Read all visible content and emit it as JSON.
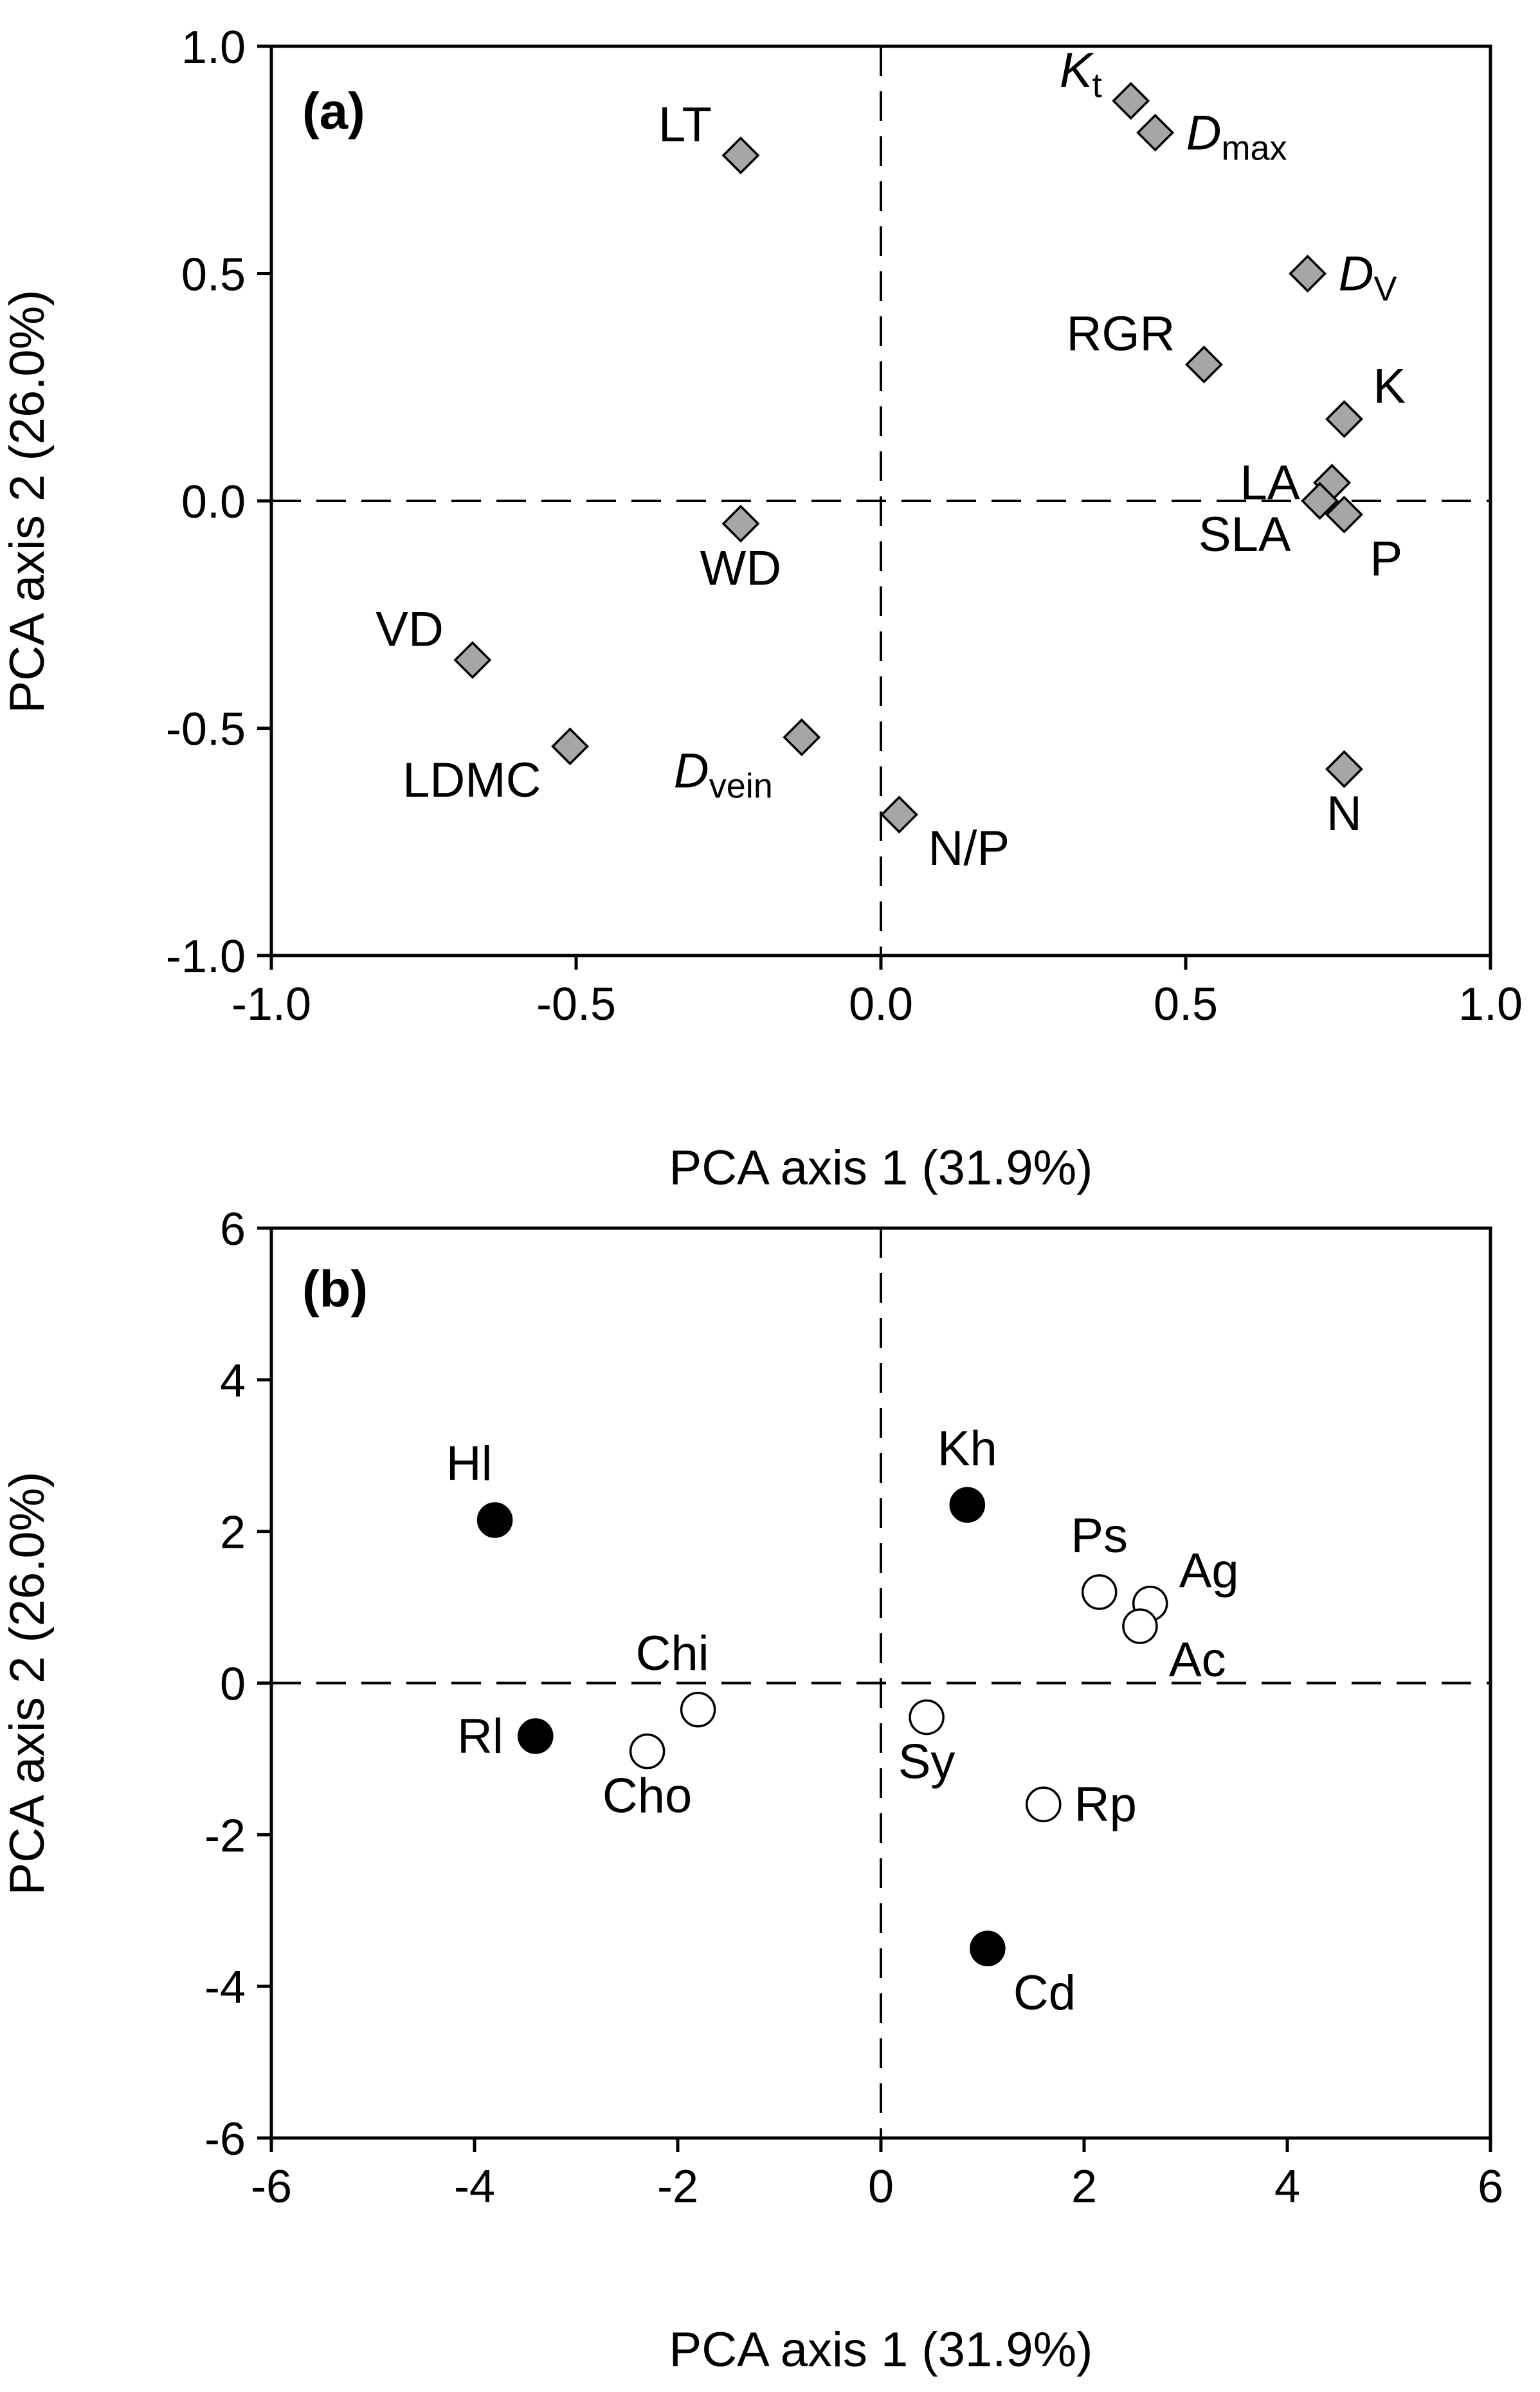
{
  "chart_data": [
    {
      "type": "scatter",
      "panel": "(a)",
      "marker": "diamond",
      "xlabel": "PCA axis 1 (31.9%)",
      "ylabel": "PCA axis 2 (26.0%)",
      "xlim": [
        -1.0,
        1.0
      ],
      "ylim": [
        -1.0,
        1.0
      ],
      "xticks": [
        -1.0,
        -0.5,
        0.0,
        0.5,
        1.0
      ],
      "yticks": [
        -1.0,
        -0.5,
        0.0,
        0.5,
        1.0
      ],
      "xtick_labels": [
        "-1.0",
        "-0.5",
        "0.0",
        "0.5",
        "1.0"
      ],
      "ytick_labels": [
        "-1.0",
        "-0.5",
        "0.0",
        "0.5",
        "1.0"
      ],
      "grid": false,
      "reference_lines": "dashed at x=0 and y=0",
      "points": [
        {
          "label": "Kt",
          "main": "K",
          "sub": "t",
          "italic": true,
          "x": 0.41,
          "y": 0.88,
          "label_pos": "upper-left"
        },
        {
          "label": "Dmax",
          "main": "D",
          "sub": "max",
          "italic": true,
          "x": 0.45,
          "y": 0.81,
          "label_pos": "right"
        },
        {
          "label": "LT",
          "main": "LT",
          "x": -0.23,
          "y": 0.76,
          "label_pos": "upper-left"
        },
        {
          "label": "DV",
          "main": "D",
          "sub": "V",
          "italic": true,
          "x": 0.7,
          "y": 0.5,
          "label_pos": "right"
        },
        {
          "label": "RGR",
          "main": "RGR",
          "x": 0.53,
          "y": 0.3,
          "label_pos": "upper-left"
        },
        {
          "label": "K",
          "main": "K",
          "x": 0.76,
          "y": 0.18,
          "label_pos": "upper-right"
        },
        {
          "label": "LA",
          "main": "LA",
          "x": 0.74,
          "y": 0.04,
          "label_pos": "left"
        },
        {
          "label": "SLA",
          "main": "SLA",
          "x": 0.72,
          "y": 0.0,
          "label_pos": "lower-left"
        },
        {
          "label": "P",
          "main": "P",
          "x": 0.76,
          "y": -0.03,
          "label_pos": "below-right"
        },
        {
          "label": "WD",
          "main": "WD",
          "x": -0.23,
          "y": -0.05,
          "label_pos": "below"
        },
        {
          "label": "VD",
          "main": "VD",
          "x": -0.67,
          "y": -0.35,
          "label_pos": "upper-left"
        },
        {
          "label": "LDMC",
          "main": "LDMC",
          "x": -0.51,
          "y": -0.54,
          "label_pos": "lower-left"
        },
        {
          "label": "Dvein",
          "main": "D",
          "sub": "vein",
          "italic": true,
          "x": -0.13,
          "y": -0.52,
          "label_pos": "lower-left"
        },
        {
          "label": "N/P",
          "main": "N/P",
          "x": 0.03,
          "y": -0.69,
          "label_pos": "lower-right"
        },
        {
          "label": "N",
          "main": "N",
          "x": 0.76,
          "y": -0.59,
          "label_pos": "below"
        }
      ]
    },
    {
      "type": "scatter",
      "panel": "(b)",
      "marker": "circle",
      "xlabel": "PCA axis 1 (31.9%)",
      "ylabel": "PCA axis 2 (26.0%)",
      "xlim": [
        -6,
        6
      ],
      "ylim": [
        -6,
        6
      ],
      "xticks": [
        -6,
        -4,
        -2,
        0,
        2,
        4,
        6
      ],
      "yticks": [
        -6,
        -4,
        -2,
        0,
        2,
        4,
        6
      ],
      "xtick_labels": [
        "-6",
        "-4",
        "-2",
        "0",
        "2",
        "4",
        "6"
      ],
      "ytick_labels": [
        "-6",
        "-4",
        "-2",
        "0",
        "2",
        "4",
        "6"
      ],
      "grid": false,
      "reference_lines": "dashed at x=0 and y=0",
      "points": [
        {
          "label": "Hl",
          "x": -3.8,
          "y": 2.15,
          "filled": true,
          "label_pos": "above-left"
        },
        {
          "label": "Rl",
          "x": -3.4,
          "y": -0.7,
          "filled": true,
          "label_pos": "left"
        },
        {
          "label": "Kh",
          "x": 0.85,
          "y": 2.35,
          "filled": true,
          "label_pos": "above"
        },
        {
          "label": "Cd",
          "x": 1.05,
          "y": -3.5,
          "filled": true,
          "label_pos": "below-right"
        },
        {
          "label": "Chi",
          "x": -1.8,
          "y": -0.35,
          "filled": false,
          "label_pos": "above-left"
        },
        {
          "label": "Cho",
          "x": -2.3,
          "y": -0.9,
          "filled": false,
          "label_pos": "below"
        },
        {
          "label": "Sy",
          "x": 0.45,
          "y": -0.45,
          "filled": false,
          "label_pos": "below"
        },
        {
          "label": "Rp",
          "x": 1.6,
          "y": -1.6,
          "filled": false,
          "label_pos": "right"
        },
        {
          "label": "Ps",
          "x": 2.15,
          "y": 1.2,
          "filled": false,
          "label_pos": "above"
        },
        {
          "label": "Ag",
          "x": 2.65,
          "y": 1.05,
          "filled": false,
          "label_pos": "upper-right"
        },
        {
          "label": "Ac",
          "x": 2.55,
          "y": 0.75,
          "filled": false,
          "label_pos": "lower-right"
        }
      ]
    }
  ]
}
